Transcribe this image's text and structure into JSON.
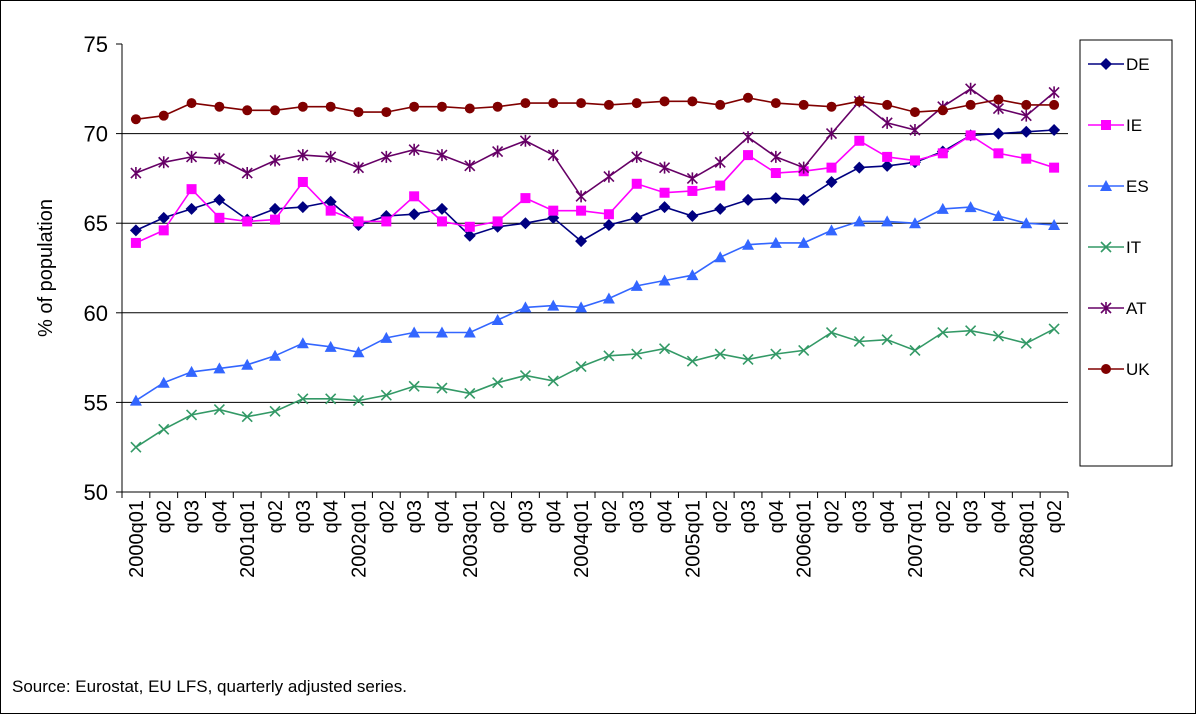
{
  "footer": {
    "source": "Source: Eurostat, EU LFS, quarterly adjusted series."
  },
  "chart_data": {
    "type": "line",
    "title": "",
    "xlabel": "",
    "ylabel": "% of population",
    "ylim": [
      50,
      75
    ],
    "yticks": [
      50,
      55,
      60,
      65,
      70,
      75
    ],
    "gridlines": [
      55,
      60,
      65,
      70
    ],
    "legend_position": "right",
    "categories": [
      "2000q01",
      "q02",
      "q03",
      "q04",
      "2001q01",
      "q02",
      "q03",
      "q04",
      "2002q01",
      "q02",
      "q03",
      "q04",
      "2003q01",
      "q02",
      "q03",
      "q04",
      "2004q01",
      "q02",
      "q03",
      "q04",
      "2005q01",
      "q02",
      "q03",
      "q04",
      "2006q01",
      "q02",
      "q03",
      "q04",
      "2007q01",
      "q02",
      "q03",
      "q04",
      "2008q01",
      "q02"
    ],
    "series": [
      {
        "name": "DE",
        "color": "#000080",
        "marker": "diamond",
        "values": [
          64.6,
          65.3,
          65.8,
          66.3,
          65.2,
          65.8,
          65.9,
          66.2,
          64.9,
          65.4,
          65.5,
          65.8,
          64.3,
          64.8,
          65.0,
          65.3,
          64.0,
          64.9,
          65.3,
          65.9,
          65.4,
          65.8,
          66.3,
          66.4,
          66.3,
          67.3,
          68.1,
          68.2,
          68.4,
          69.0,
          69.9,
          70.0,
          70.1,
          70.2
        ]
      },
      {
        "name": "IE",
        "color": "#FF00FF",
        "marker": "square",
        "values": [
          63.9,
          64.6,
          66.9,
          65.3,
          65.1,
          65.2,
          67.3,
          65.7,
          65.1,
          65.1,
          66.5,
          65.1,
          64.8,
          65.1,
          66.4,
          65.7,
          65.7,
          65.5,
          67.2,
          66.7,
          66.8,
          67.1,
          68.8,
          67.8,
          67.9,
          68.1,
          69.6,
          68.7,
          68.5,
          68.9,
          69.9,
          68.9,
          68.6,
          68.1
        ]
      },
      {
        "name": "ES",
        "color": "#3366FF",
        "marker": "triangle",
        "values": [
          55.1,
          56.1,
          56.7,
          56.9,
          57.1,
          57.6,
          58.3,
          58.1,
          57.8,
          58.6,
          58.9,
          58.9,
          58.9,
          59.6,
          60.3,
          60.4,
          60.3,
          60.8,
          61.5,
          61.8,
          62.1,
          63.1,
          63.8,
          63.9,
          63.9,
          64.6,
          65.1,
          65.1,
          65.0,
          65.8,
          65.9,
          65.4,
          65.0,
          64.9
        ]
      },
      {
        "name": "IT",
        "color": "#339966",
        "marker": "x",
        "values": [
          52.5,
          53.5,
          54.3,
          54.6,
          54.2,
          54.5,
          55.2,
          55.2,
          55.1,
          55.4,
          55.9,
          55.8,
          55.5,
          56.1,
          56.5,
          56.2,
          57.0,
          57.6,
          57.7,
          58.0,
          57.3,
          57.7,
          57.4,
          57.7,
          57.9,
          58.9,
          58.4,
          58.5,
          57.9,
          58.9,
          59.0,
          58.7,
          58.3,
          59.1
        ]
      },
      {
        "name": "AT",
        "color": "#660066",
        "marker": "star",
        "values": [
          67.8,
          68.4,
          68.7,
          68.6,
          67.8,
          68.5,
          68.8,
          68.7,
          68.1,
          68.7,
          69.1,
          68.8,
          68.2,
          69.0,
          69.6,
          68.8,
          66.5,
          67.6,
          68.7,
          68.1,
          67.5,
          68.4,
          69.8,
          68.7,
          68.1,
          70.0,
          71.8,
          70.6,
          70.2,
          71.5,
          72.5,
          71.4,
          71.0,
          72.3
        ]
      },
      {
        "name": "UK",
        "color": "#800000",
        "marker": "circle",
        "values": [
          70.8,
          71.0,
          71.7,
          71.5,
          71.3,
          71.3,
          71.5,
          71.5,
          71.2,
          71.2,
          71.5,
          71.5,
          71.4,
          71.5,
          71.7,
          71.7,
          71.7,
          71.6,
          71.7,
          71.8,
          71.8,
          71.6,
          72.0,
          71.7,
          71.6,
          71.5,
          71.8,
          71.6,
          71.2,
          71.3,
          71.6,
          71.9,
          71.6,
          71.6
        ]
      }
    ]
  }
}
